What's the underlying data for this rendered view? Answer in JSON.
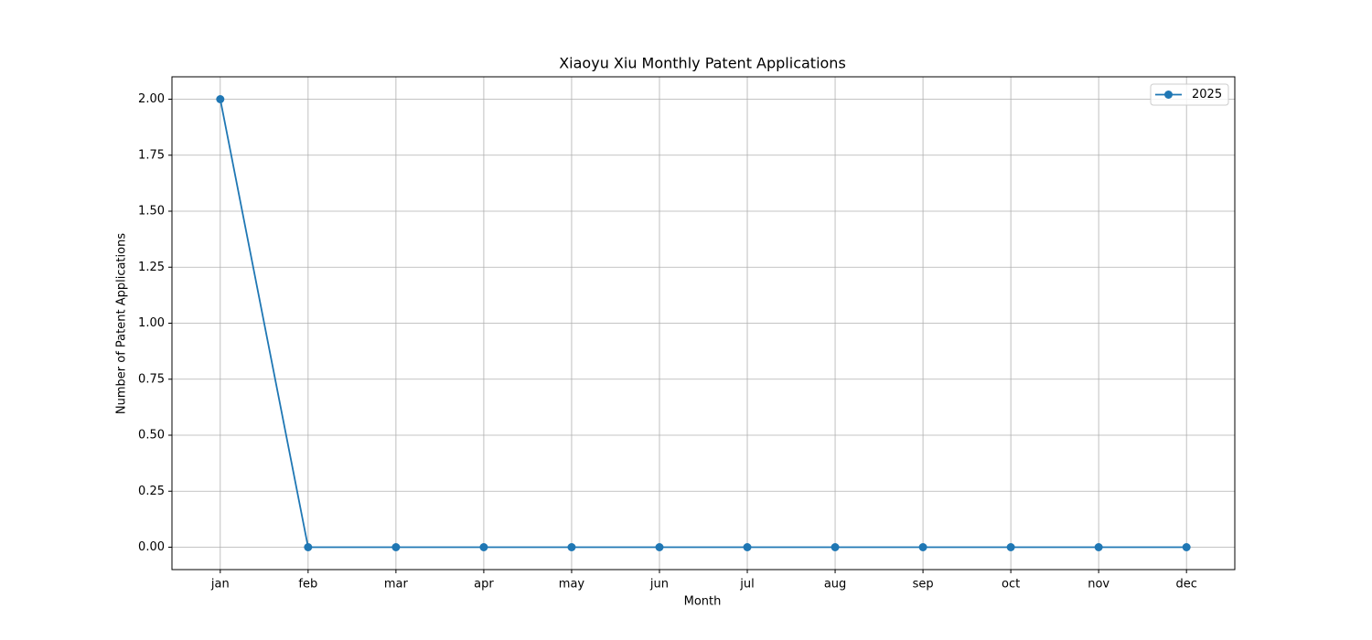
{
  "chart_data": {
    "type": "line",
    "title": "Xiaoyu Xiu Monthly Patent Applications",
    "x_label": "Month",
    "y_label": "Number of Patent Applications",
    "categories": [
      "jan",
      "feb",
      "mar",
      "apr",
      "may",
      "jun",
      "jul",
      "aug",
      "sep",
      "oct",
      "nov",
      "dec"
    ],
    "series": [
      {
        "name": "2025",
        "color": "#1f77b4",
        "values": [
          2,
          0,
          0,
          0,
          0,
          0,
          0,
          0,
          0,
          0,
          0,
          0
        ]
      }
    ],
    "ylim": [
      -0.1,
      2.1
    ],
    "yticks": [
      {
        "value": 0,
        "label": "0.00"
      },
      {
        "value": 0.25,
        "label": "0.25"
      },
      {
        "value": 0.5,
        "label": "0.50"
      },
      {
        "value": 0.75,
        "label": "0.75"
      },
      {
        "value": 1,
        "label": "1.00"
      },
      {
        "value": 1.25,
        "label": "1.25"
      },
      {
        "value": 1.5,
        "label": "1.50"
      },
      {
        "value": 1.75,
        "label": "1.75"
      },
      {
        "value": 2,
        "label": "2.00"
      }
    ],
    "grid": true,
    "legend": "upper-right"
  }
}
